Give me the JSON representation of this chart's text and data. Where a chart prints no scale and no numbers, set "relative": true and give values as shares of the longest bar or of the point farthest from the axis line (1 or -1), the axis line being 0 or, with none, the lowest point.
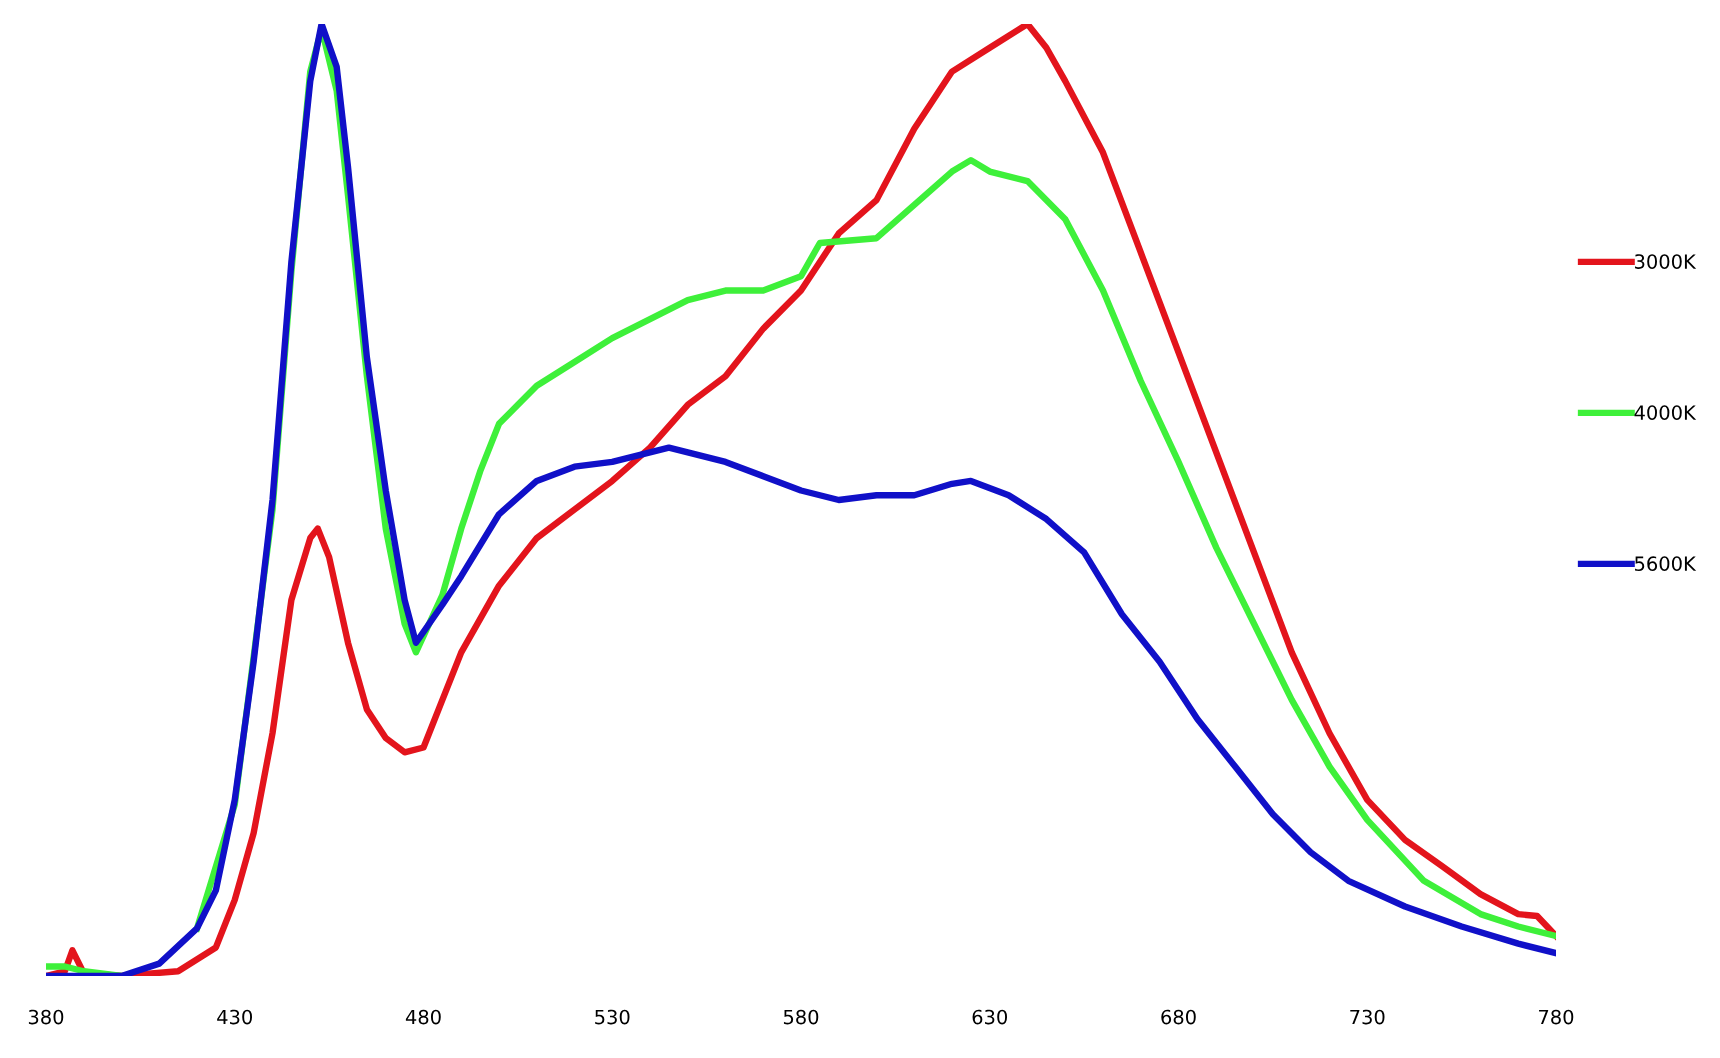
{
  "chart_data": {
    "type": "line",
    "relative": true,
    "xlim": [
      380,
      780
    ],
    "xticks": [
      380,
      430,
      480,
      530,
      580,
      630,
      680,
      730,
      780
    ],
    "legend": "right",
    "grid": false,
    "marker": "none",
    "line_style": "solid",
    "series": [
      {
        "name": "3000K",
        "color": "#e3141c",
        "x": [
          380,
          385,
          387,
          390,
          400,
          415,
          425,
          430,
          435,
          440,
          445,
          450,
          452,
          455,
          460,
          465,
          470,
          475,
          480,
          485,
          490,
          500,
          510,
          520,
          530,
          540,
          550,
          560,
          570,
          580,
          590,
          600,
          610,
          620,
          630,
          640,
          645,
          650,
          660,
          670,
          680,
          690,
          700,
          710,
          720,
          730,
          740,
          750,
          760,
          770,
          775,
          780
        ],
        "values": [
          0,
          0.005,
          0.027,
          0.003,
          0,
          0.005,
          0.03,
          0.08,
          0.15,
          0.255,
          0.395,
          0.46,
          0.47,
          0.44,
          0.35,
          0.28,
          0.25,
          0.235,
          0.24,
          0.29,
          0.34,
          0.41,
          0.46,
          0.49,
          0.52,
          0.555,
          0.6,
          0.63,
          0.68,
          0.72,
          0.78,
          0.815,
          0.89,
          0.95,
          0.975,
          1.0,
          0.975,
          0.94,
          0.865,
          0.76,
          0.655,
          0.55,
          0.445,
          0.34,
          0.255,
          0.185,
          0.143,
          0.115,
          0.086,
          0.065,
          0.063,
          0.042
        ]
      },
      {
        "name": "4000K",
        "color": "#3ef03a",
        "x": [
          380,
          385,
          390,
          400,
          410,
          420,
          430,
          440,
          445,
          450,
          453,
          457,
          460,
          465,
          470,
          475,
          478,
          485,
          490,
          495,
          500,
          505,
          510,
          520,
          530,
          540,
          550,
          560,
          570,
          580,
          585,
          600,
          610,
          620,
          625,
          630,
          640,
          650,
          660,
          670,
          680,
          690,
          700,
          710,
          720,
          730,
          745,
          760,
          770,
          780
        ],
        "values": [
          0.01,
          0.01,
          0.005,
          0,
          null,
          0.05,
          0.18,
          0.49,
          0.74,
          0.95,
          0.995,
          0.93,
          0.82,
          0.63,
          0.47,
          0.37,
          0.34,
          0.4,
          0.47,
          0.53,
          0.58,
          0.6,
          0.62,
          0.645,
          0.67,
          0.69,
          0.71,
          0.72,
          0.72,
          0.735,
          0.77,
          0.775,
          0.81,
          0.845,
          0.857,
          0.845,
          0.835,
          0.795,
          0.72,
          0.625,
          0.54,
          0.45,
          0.37,
          0.29,
          0.22,
          0.164,
          0.1,
          0.065,
          0.052,
          0.042
        ]
      },
      {
        "name": "5600K",
        "color": "#1010c8",
        "x": [
          380,
          400,
          410,
          420,
          425,
          430,
          435,
          440,
          445,
          450,
          453,
          457,
          460,
          465,
          470,
          475,
          478,
          485,
          490,
          500,
          510,
          520,
          530,
          540,
          545,
          560,
          570,
          580,
          590,
          600,
          610,
          620,
          625,
          635,
          645,
          655,
          665,
          675,
          685,
          695,
          705,
          715,
          725,
          740,
          755,
          770,
          780
        ],
        "values": [
          0,
          0,
          0.013,
          0.05,
          0.09,
          0.185,
          0.33,
          0.5,
          0.75,
          0.94,
          1.0,
          0.955,
          0.85,
          0.65,
          0.51,
          0.395,
          0.35,
          0.39,
          0.42,
          0.485,
          0.52,
          0.535,
          0.54,
          0.55,
          0.555,
          0.54,
          0.525,
          0.51,
          0.5,
          0.505,
          0.505,
          0.517,
          0.52,
          0.505,
          0.48,
          0.445,
          0.38,
          0.33,
          0.27,
          0.22,
          0.17,
          0.13,
          0.1,
          0.073,
          0.052,
          0.034,
          0.024
        ]
      }
    ]
  }
}
